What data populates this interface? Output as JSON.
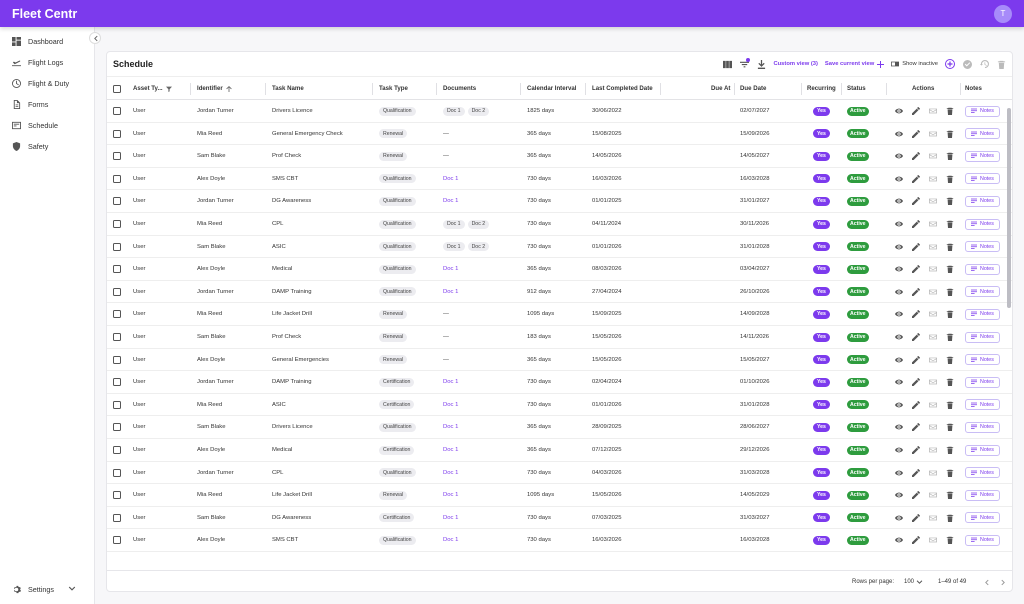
{
  "app": {
    "title": "Fleet Centr",
    "user_initial": "T"
  },
  "sidebar": {
    "items": [
      {
        "label": "Dashboard",
        "icon": "dashboard-icon"
      },
      {
        "label": "Flight Logs",
        "icon": "plane-icon"
      },
      {
        "label": "Flight & Duty",
        "icon": "clock-icon"
      },
      {
        "label": "Forms",
        "icon": "form-icon"
      },
      {
        "label": "Schedule",
        "icon": "calendar-icon"
      },
      {
        "label": "Safety",
        "icon": "shield-icon"
      }
    ],
    "settings_label": "Settings"
  },
  "schedule": {
    "title": "Schedule",
    "toolbar": {
      "custom_view": "Custom view (3)",
      "save_view": "Save current view",
      "show_inactive": "Show inactive"
    },
    "columns": {
      "asset_type": "Asset Ty...",
      "identifier": "Identifier",
      "task_name": "Task Name",
      "task_type": "Task Type",
      "documents": "Documents",
      "calendar_interval": "Calendar Interval",
      "last_completed": "Last Completed Date",
      "due_at": "Due At",
      "due_date": "Due Date",
      "recurring": "Recurring",
      "status": "Status",
      "actions": "Actions",
      "notes": "Notes"
    },
    "rows": [
      {
        "asset": "User",
        "identifier": "Jordan Turner",
        "task": "Drivers Licence",
        "type": "Qualification",
        "docs": [
          "Doc 1",
          "Doc 2"
        ],
        "doc_style": "chip",
        "interval": "1825 days",
        "last": "30/06/2022",
        "due_at": "",
        "due_date": "02/07/2027",
        "recurring": "Yes",
        "status": "Active",
        "notes": "Notes"
      },
      {
        "asset": "User",
        "identifier": "Mia Reed",
        "task": "General Emergency Check",
        "type": "Renewal",
        "docs": [
          "—"
        ],
        "doc_style": "dash",
        "interval": "365 days",
        "last": "15/08/2025",
        "due_at": "",
        "due_date": "15/09/2026",
        "recurring": "Yes",
        "status": "Active",
        "notes": "Notes"
      },
      {
        "asset": "User",
        "identifier": "Sam Blake",
        "task": "Prof Check",
        "type": "Renewal",
        "docs": [
          "—"
        ],
        "doc_style": "dash",
        "interval": "365 days",
        "last": "14/05/2026",
        "due_at": "",
        "due_date": "14/05/2027",
        "recurring": "Yes",
        "status": "Active",
        "notes": "Notes"
      },
      {
        "asset": "User",
        "identifier": "Alex Doyle",
        "task": "SMS CBT",
        "type": "Qualification",
        "docs": [
          "Doc 1"
        ],
        "doc_style": "link",
        "interval": "730 days",
        "last": "16/03/2026",
        "due_at": "",
        "due_date": "16/03/2028",
        "recurring": "Yes",
        "status": "Active",
        "notes": "Notes"
      },
      {
        "asset": "User",
        "identifier": "Jordan Turner",
        "task": "DG Awareness",
        "type": "Qualification",
        "docs": [
          "Doc 1"
        ],
        "doc_style": "link",
        "interval": "730 days",
        "last": "01/01/2025",
        "due_at": "",
        "due_date": "31/01/2027",
        "recurring": "Yes",
        "status": "Active",
        "notes": "Notes"
      },
      {
        "asset": "User",
        "identifier": "Mia Reed",
        "task": "CPL",
        "type": "Qualification",
        "docs": [
          "Doc 1",
          "Doc 2"
        ],
        "doc_style": "chip",
        "interval": "730 days",
        "last": "04/11/2024",
        "due_at": "",
        "due_date": "30/11/2026",
        "recurring": "Yes",
        "status": "Active",
        "notes": "Notes"
      },
      {
        "asset": "User",
        "identifier": "Sam Blake",
        "task": "ASIC",
        "type": "Qualification",
        "docs": [
          "Doc 1",
          "Doc 2"
        ],
        "doc_style": "chip",
        "interval": "730 days",
        "last": "01/01/2026",
        "due_at": "",
        "due_date": "31/01/2028",
        "recurring": "Yes",
        "status": "Active",
        "notes": "Notes"
      },
      {
        "asset": "User",
        "identifier": "Alex Doyle",
        "task": "Medical",
        "type": "Qualification",
        "docs": [
          "Doc 1"
        ],
        "doc_style": "link",
        "interval": "365 days",
        "last": "08/03/2026",
        "due_at": "",
        "due_date": "03/04/2027",
        "recurring": "Yes",
        "status": "Active",
        "notes": "Notes"
      },
      {
        "asset": "User",
        "identifier": "Jordan Turner",
        "task": "DAMP Training",
        "type": "Qualification",
        "docs": [
          "Doc 1"
        ],
        "doc_style": "link",
        "interval": "912 days",
        "last": "27/04/2024",
        "due_at": "",
        "due_date": "26/10/2026",
        "recurring": "Yes",
        "status": "Active",
        "notes": "Notes"
      },
      {
        "asset": "User",
        "identifier": "Mia Reed",
        "task": "Life Jacket Drill",
        "type": "Renewal",
        "docs": [
          "—"
        ],
        "doc_style": "dash",
        "interval": "1095 days",
        "last": "15/09/2025",
        "due_at": "",
        "due_date": "14/09/2028",
        "recurring": "Yes",
        "status": "Active",
        "notes": "Notes"
      },
      {
        "asset": "User",
        "identifier": "Sam Blake",
        "task": "Prof Check",
        "type": "Renewal",
        "docs": [
          "—"
        ],
        "doc_style": "dash",
        "interval": "183 days",
        "last": "15/05/2026",
        "due_at": "",
        "due_date": "14/11/2026",
        "recurring": "Yes",
        "status": "Active",
        "notes": "Notes"
      },
      {
        "asset": "User",
        "identifier": "Alex Doyle",
        "task": "General Emergencies",
        "type": "Renewal",
        "docs": [
          "—"
        ],
        "doc_style": "dash",
        "interval": "365 days",
        "last": "15/05/2026",
        "due_at": "",
        "due_date": "15/05/2027",
        "recurring": "Yes",
        "status": "Active",
        "notes": "Notes"
      },
      {
        "asset": "User",
        "identifier": "Jordan Turner",
        "task": "DAMP Training",
        "type": "Certification",
        "docs": [
          "Doc 1"
        ],
        "doc_style": "link",
        "interval": "730 days",
        "last": "02/04/2024",
        "due_at": "",
        "due_date": "01/10/2026",
        "recurring": "Yes",
        "status": "Active",
        "notes": "Notes"
      },
      {
        "asset": "User",
        "identifier": "Mia Reed",
        "task": "ASIC",
        "type": "Certification",
        "docs": [
          "Doc 1"
        ],
        "doc_style": "link",
        "interval": "730 days",
        "last": "01/01/2026",
        "due_at": "",
        "due_date": "31/01/2028",
        "recurring": "Yes",
        "status": "Active",
        "notes": "Notes"
      },
      {
        "asset": "User",
        "identifier": "Sam Blake",
        "task": "Drivers Licence",
        "type": "Qualification",
        "docs": [
          "Doc 1"
        ],
        "doc_style": "link",
        "interval": "365 days",
        "last": "28/09/2025",
        "due_at": "",
        "due_date": "28/06/2027",
        "recurring": "Yes",
        "status": "Active",
        "notes": "Notes"
      },
      {
        "asset": "User",
        "identifier": "Alex Doyle",
        "task": "Medical",
        "type": "Certification",
        "docs": [
          "Doc 1"
        ],
        "doc_style": "link",
        "interval": "365 days",
        "last": "07/12/2025",
        "due_at": "",
        "due_date": "29/12/2026",
        "recurring": "Yes",
        "status": "Active",
        "notes": "Notes"
      },
      {
        "asset": "User",
        "identifier": "Jordan Turner",
        "task": "CPL",
        "type": "Qualification",
        "docs": [
          "Doc 1"
        ],
        "doc_style": "link",
        "interval": "730 days",
        "last": "04/03/2026",
        "due_at": "",
        "due_date": "31/03/2028",
        "recurring": "Yes",
        "status": "Active",
        "notes": "Notes"
      },
      {
        "asset": "User",
        "identifier": "Mia Reed",
        "task": "Life Jacket Drill",
        "type": "Renewal",
        "docs": [
          "Doc 1"
        ],
        "doc_style": "link",
        "interval": "1095 days",
        "last": "15/05/2026",
        "due_at": "",
        "due_date": "14/05/2029",
        "recurring": "Yes",
        "status": "Active",
        "notes": "Notes"
      },
      {
        "asset": "User",
        "identifier": "Sam Blake",
        "task": "DG Awareness",
        "type": "Certification",
        "docs": [
          "Doc 1"
        ],
        "doc_style": "link",
        "interval": "730 days",
        "last": "07/03/2025",
        "due_at": "",
        "due_date": "31/03/2027",
        "recurring": "Yes",
        "status": "Active",
        "notes": "Notes"
      },
      {
        "asset": "User",
        "identifier": "Alex Doyle",
        "task": "SMS CBT",
        "type": "Qualification",
        "docs": [
          "Doc 1"
        ],
        "doc_style": "link",
        "interval": "730 days",
        "last": "16/03/2026",
        "due_at": "",
        "due_date": "16/03/2028",
        "recurring": "Yes",
        "status": "Active",
        "notes": "Notes"
      }
    ],
    "pagination": {
      "rows_per_page_label": "Rows per page:",
      "rows_per_page": "100",
      "range": "1–49 of 49"
    }
  },
  "colors": {
    "accent": "#7c3aed",
    "active": "#2e9c3e"
  }
}
